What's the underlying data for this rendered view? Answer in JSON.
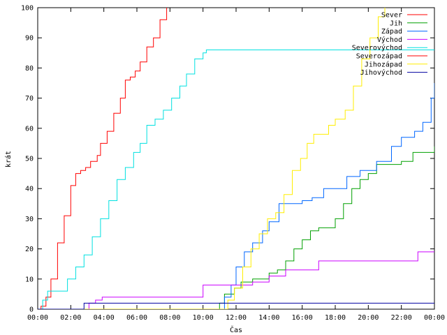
{
  "chart_data": {
    "type": "line",
    "title": "",
    "xlabel": "Čas",
    "ylabel": "krát",
    "xlim": [
      0,
      24
    ],
    "ylim": [
      0,
      100
    ],
    "x_ticks": [
      {
        "v": 0,
        "label": "00:00"
      },
      {
        "v": 2,
        "label": "02:00"
      },
      {
        "v": 4,
        "label": "04:00"
      },
      {
        "v": 6,
        "label": "06:00"
      },
      {
        "v": 8,
        "label": "08:00"
      },
      {
        "v": 10,
        "label": "10:00"
      },
      {
        "v": 12,
        "label": "12:00"
      },
      {
        "v": 14,
        "label": "14:00"
      },
      {
        "v": 16,
        "label": "16:00"
      },
      {
        "v": 18,
        "label": "18:00"
      },
      {
        "v": 20,
        "label": "20:00"
      },
      {
        "v": 22,
        "label": "22:00"
      },
      {
        "v": 24,
        "label": "00:00"
      }
    ],
    "y_ticks": [
      0,
      10,
      20,
      30,
      40,
      50,
      60,
      70,
      80,
      90,
      100
    ],
    "grid": false,
    "legend": "top-right",
    "series": [
      {
        "name": "Sever",
        "color": "#ff0000",
        "points": [
          [
            0,
            0
          ],
          [
            0.2,
            1
          ],
          [
            0.5,
            4
          ],
          [
            0.8,
            10
          ],
          [
            1.2,
            22
          ],
          [
            1.6,
            31
          ],
          [
            2.0,
            41
          ],
          [
            2.3,
            45
          ],
          [
            2.6,
            46
          ],
          [
            2.9,
            47
          ],
          [
            3.2,
            49
          ],
          [
            3.6,
            51
          ],
          [
            3.8,
            55
          ],
          [
            4.2,
            59
          ],
          [
            4.6,
            65
          ],
          [
            5.0,
            70
          ],
          [
            5.3,
            76
          ],
          [
            5.6,
            77
          ],
          [
            5.9,
            79
          ],
          [
            6.2,
            82
          ],
          [
            6.6,
            87
          ],
          [
            7.0,
            90
          ],
          [
            7.4,
            96
          ],
          [
            7.8,
            100
          ]
        ]
      },
      {
        "name": "Jih",
        "color": "#00a000",
        "points": [
          [
            0,
            0
          ],
          [
            10.8,
            0
          ],
          [
            11.0,
            2
          ],
          [
            11.3,
            5
          ],
          [
            11.9,
            7
          ],
          [
            12.3,
            9
          ],
          [
            13.0,
            10
          ],
          [
            14.0,
            12
          ],
          [
            14.5,
            13
          ],
          [
            15.0,
            16
          ],
          [
            15.5,
            20
          ],
          [
            16.0,
            23
          ],
          [
            16.5,
            26
          ],
          [
            17.0,
            27
          ],
          [
            18.0,
            30
          ],
          [
            18.5,
            35
          ],
          [
            19.0,
            40
          ],
          [
            19.5,
            43
          ],
          [
            20.0,
            45
          ],
          [
            20.5,
            48
          ],
          [
            22.0,
            49
          ],
          [
            22.7,
            52
          ],
          [
            24.0,
            54
          ]
        ]
      },
      {
        "name": "Západ",
        "color": "#0066ff",
        "points": [
          [
            0,
            0
          ],
          [
            11.0,
            0
          ],
          [
            11.3,
            4
          ],
          [
            11.7,
            8
          ],
          [
            12.0,
            14
          ],
          [
            12.5,
            19
          ],
          [
            13.0,
            22
          ],
          [
            13.6,
            26
          ],
          [
            14.0,
            29
          ],
          [
            14.6,
            35
          ],
          [
            15.2,
            35
          ],
          [
            16.0,
            36
          ],
          [
            16.6,
            37
          ],
          [
            17.3,
            40
          ],
          [
            18.0,
            40
          ],
          [
            18.7,
            44
          ],
          [
            19.5,
            46
          ],
          [
            20.5,
            49
          ],
          [
            21.4,
            54
          ],
          [
            22.0,
            57
          ],
          [
            22.8,
            59
          ],
          [
            23.3,
            62
          ],
          [
            23.8,
            70
          ],
          [
            24.0,
            75
          ]
        ]
      },
      {
        "name": "Východ",
        "color": "#cc00ff",
        "points": [
          [
            0,
            0
          ],
          [
            2.9,
            0
          ],
          [
            3.1,
            2
          ],
          [
            3.5,
            3
          ],
          [
            3.9,
            4
          ],
          [
            9.5,
            4
          ],
          [
            10.0,
            8
          ],
          [
            11.0,
            8
          ],
          [
            12.0,
            8
          ],
          [
            13.0,
            9
          ],
          [
            14.0,
            11
          ],
          [
            15.0,
            13
          ],
          [
            16.0,
            13
          ],
          [
            17.0,
            16
          ],
          [
            22.0,
            16
          ],
          [
            23.0,
            19
          ],
          [
            24.0,
            19
          ]
        ]
      },
      {
        "name": "Severovýchod",
        "color": "#00e0e0",
        "points": [
          [
            0,
            0
          ],
          [
            0.3,
            3
          ],
          [
            0.6,
            6
          ],
          [
            1.4,
            6
          ],
          [
            1.8,
            10
          ],
          [
            2.3,
            14
          ],
          [
            2.8,
            18
          ],
          [
            3.3,
            24
          ],
          [
            3.8,
            30
          ],
          [
            4.3,
            36
          ],
          [
            4.8,
            43
          ],
          [
            5.3,
            47
          ],
          [
            5.8,
            52
          ],
          [
            6.2,
            55
          ],
          [
            6.6,
            61
          ],
          [
            7.1,
            63
          ],
          [
            7.6,
            66
          ],
          [
            8.1,
            70
          ],
          [
            8.6,
            74
          ],
          [
            9.0,
            78
          ],
          [
            9.5,
            83
          ],
          [
            10.0,
            85
          ],
          [
            10.2,
            86
          ],
          [
            24.0,
            86
          ]
        ]
      },
      {
        "name": "Severozápad",
        "color": "#ff0000",
        "points": []
      },
      {
        "name": "Jihozápad",
        "color": "#ffee00",
        "points": [
          [
            0,
            0
          ],
          [
            11.2,
            0
          ],
          [
            11.5,
            3
          ],
          [
            11.9,
            7
          ],
          [
            12.4,
            14
          ],
          [
            12.9,
            20
          ],
          [
            13.4,
            25
          ],
          [
            13.9,
            30
          ],
          [
            14.4,
            32
          ],
          [
            14.9,
            38
          ],
          [
            15.4,
            46
          ],
          [
            15.9,
            50
          ],
          [
            16.3,
            55
          ],
          [
            16.7,
            58
          ],
          [
            17.1,
            58
          ],
          [
            17.6,
            61
          ],
          [
            18.0,
            63
          ],
          [
            18.6,
            66
          ],
          [
            19.1,
            74
          ],
          [
            19.6,
            83
          ],
          [
            20.1,
            90
          ],
          [
            20.6,
            97
          ],
          [
            21.0,
            100
          ]
        ]
      },
      {
        "name": "Jihovýchod",
        "color": "#0000a0",
        "points": [
          [
            0,
            0
          ],
          [
            2.6,
            0
          ],
          [
            2.8,
            2
          ],
          [
            3.6,
            2
          ],
          [
            10.6,
            2
          ],
          [
            24.0,
            2
          ]
        ]
      }
    ]
  }
}
